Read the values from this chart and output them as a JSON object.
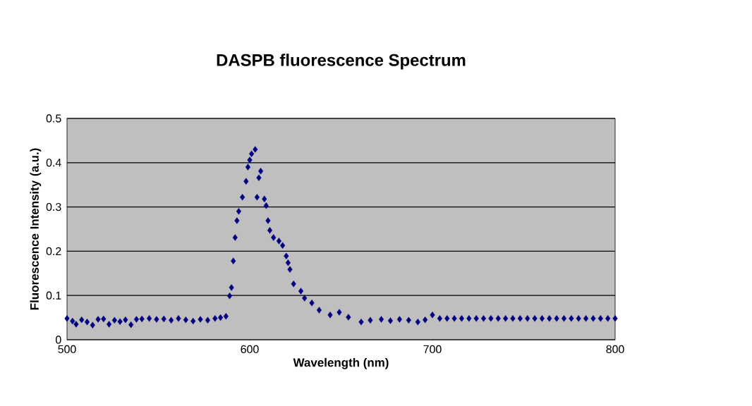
{
  "chart_data": {
    "type": "scatter",
    "title": "DASPB fluorescence Spectrum",
    "xlabel": "Wavelength (nm)",
    "ylabel": "Fluorescence Intensity (a.u.)",
    "xlim": [
      500,
      800
    ],
    "ylim": [
      0,
      0.5
    ],
    "xticks": [
      500,
      600,
      700,
      800
    ],
    "yticks": [
      0,
      0.1,
      0.2,
      0.3,
      0.4,
      0.5
    ],
    "grid": "y",
    "marker": "diamond",
    "series": [
      {
        "color": "#000080",
        "x": [
          500,
          503,
          505,
          508,
          511,
          514,
          517,
          520,
          523,
          526,
          529,
          532,
          535,
          538,
          541,
          545,
          549,
          553,
          557,
          561,
          565,
          569,
          573,
          577,
          581,
          584,
          587,
          589,
          590,
          591,
          592,
          593,
          594,
          596,
          598,
          599,
          600,
          601,
          603,
          604,
          605,
          606,
          608,
          609,
          610,
          611,
          613,
          616,
          618,
          620,
          621,
          622,
          624,
          628,
          630,
          634,
          638,
          644,
          649,
          654,
          661,
          666,
          672,
          677,
          682,
          687,
          692,
          696,
          700,
          704,
          708,
          712,
          716,
          720,
          724,
          728,
          732,
          736,
          740,
          744,
          748,
          752,
          756,
          760,
          764,
          768,
          772,
          776,
          780,
          784,
          788,
          792,
          796,
          800
        ],
        "values": [
          0.048,
          0.042,
          0.035,
          0.045,
          0.04,
          0.033,
          0.046,
          0.047,
          0.035,
          0.044,
          0.041,
          0.045,
          0.034,
          0.046,
          0.047,
          0.048,
          0.046,
          0.047,
          0.044,
          0.048,
          0.045,
          0.042,
          0.046,
          0.044,
          0.048,
          0.05,
          0.053,
          0.099,
          0.118,
          0.178,
          0.231,
          0.269,
          0.29,
          0.322,
          0.358,
          0.39,
          0.406,
          0.42,
          0.43,
          0.322,
          0.366,
          0.381,
          0.318,
          0.303,
          0.269,
          0.247,
          0.231,
          0.223,
          0.213,
          0.189,
          0.174,
          0.159,
          0.126,
          0.11,
          0.094,
          0.083,
          0.067,
          0.056,
          0.062,
          0.051,
          0.04,
          0.044,
          0.046,
          0.043,
          0.046,
          0.044,
          0.04,
          0.045,
          0.056,
          0.048,
          0.048,
          0.048,
          0.048,
          0.048,
          0.048,
          0.048,
          0.048,
          0.048,
          0.048,
          0.048,
          0.048,
          0.048,
          0.048,
          0.048,
          0.048,
          0.048,
          0.048,
          0.048,
          0.048,
          0.048,
          0.048,
          0.048,
          0.048,
          0.048
        ]
      }
    ]
  }
}
